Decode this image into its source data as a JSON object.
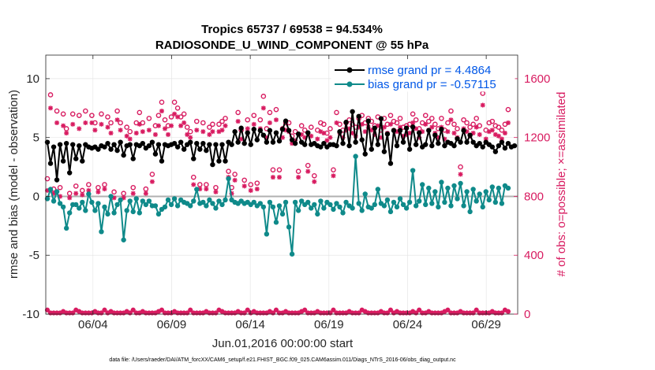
{
  "chart_data": {
    "type": "line",
    "title_line1": "Tropics 65737 / 69538 = 94.534%",
    "title_line2": "RADIOSONDE_U_WIND_COMPONENT @ 55 hPa",
    "xlabel": "Jun.01,2016 00:00:00 start",
    "ylabel_left": "rmse and bias (model - observation)",
    "ylabel_right": "# of obs: o=possible; ×=assimilated",
    "footnote": "data file: /Users/raeder/DAI/ATM_forcXX/CAM6_setup/f.e21.FHIST_BGC.f09_025.CAM6assim.011/Diags_NTrS_2016-06/obs_diag_output.nc",
    "xlim": [
      1,
      31
    ],
    "ylim_left": [
      -10,
      12
    ],
    "ylim_right": [
      0,
      1760
    ],
    "x_ticks": [
      {
        "value": 4,
        "label": "06/04"
      },
      {
        "value": 9,
        "label": "06/09"
      },
      {
        "value": 14,
        "label": "06/14"
      },
      {
        "value": 19,
        "label": "06/19"
      },
      {
        "value": 24,
        "label": "06/24"
      },
      {
        "value": 29,
        "label": "06/29"
      }
    ],
    "y_ticks_left": [
      "10",
      "5",
      "0",
      "-5",
      "-10"
    ],
    "y_ticks_left_values": [
      10,
      5,
      0,
      -5,
      -10
    ],
    "y_ticks_right": [
      "1600",
      "1200",
      "800",
      "400",
      "0"
    ],
    "y_ticks_right_values": [
      1600,
      1200,
      800,
      400,
      0
    ],
    "colors": {
      "rmse": "#000000",
      "bias": "#0f8a8a",
      "obs": "#d81b60",
      "legend_text": "#0057e7",
      "zero_line": "#b0b0b0"
    },
    "series": [
      {
        "name": "rmse grand pr = 4.4864",
        "axis": "left",
        "values": [
          4.6,
          2.8,
          4.2,
          1.4,
          4.4,
          3.0,
          4.5,
          2.0,
          4.4,
          3.2,
          4.3,
          3.0,
          4.4,
          4.2,
          4.1,
          4.2,
          4.0,
          4.3,
          4.2,
          4.5,
          4.0,
          4.4,
          3.9,
          4.6,
          3.5,
          4.3,
          4.4,
          3.2,
          4.4,
          4.3,
          4.5,
          4.1,
          4.3,
          4.6,
          3.6,
          4.4,
          3.0,
          4.4,
          4.3,
          4.4,
          4.5,
          4.2,
          4.6,
          4.0,
          4.4,
          4.6,
          3.2,
          4.5,
          4.0,
          4.5,
          3.9,
          4.4,
          2.7,
          4.4,
          3.0,
          4.4,
          3.0,
          4.6,
          4.4,
          5.5,
          4.6,
          5.8,
          4.5,
          5.4,
          4.4,
          5.7,
          4.8,
          5.6,
          5.2,
          4.6,
          5.6,
          4.6,
          5.4,
          4.7,
          5.7,
          6.4,
          5.6,
          4.8,
          4.5,
          5.3,
          4.6,
          4.4,
          5.4,
          4.4,
          4.5,
          4.3,
          4.2,
          4.5,
          4.2,
          4.4,
          4.4,
          4.3,
          5.5,
          4.5,
          6.3,
          4.3,
          7.2,
          4.6,
          6.8,
          4.8,
          3.6,
          6.4,
          4.0,
          5.8,
          4.4,
          6.6,
          3.8,
          5.3,
          2.8,
          5.6,
          4.3,
          5.6,
          4.6,
          5.8,
          4.0,
          5.9,
          4.4,
          5.4,
          4.2,
          4.4,
          5.6,
          4.3,
          5.2,
          4.5,
          5.7,
          4.3,
          4.6,
          4.5,
          4.3,
          4.9,
          4.6,
          5.6,
          4.6,
          5.2,
          4.6,
          4.3,
          4.5,
          4.2,
          4.6,
          4.4,
          4.2,
          3.8,
          4.3,
          4.6,
          4.1,
          4.5,
          4.2,
          4.3
        ]
      },
      {
        "name": "bias grand pr = -0.57115",
        "axis": "left",
        "values": [
          -0.2,
          0.6,
          -0.4,
          0.4,
          -0.6,
          -0.9,
          -2.7,
          -1.4,
          -0.7,
          -0.7,
          -1.0,
          -0.5,
          -1.2,
          0.2,
          -0.5,
          -1.2,
          -0.6,
          -3.0,
          -0.9,
          -1.5,
          0.0,
          -1.4,
          -0.7,
          -0.3,
          -3.7,
          -1.2,
          -0.4,
          -1.3,
          -0.2,
          -1.4,
          -0.4,
          -0.7,
          -0.4,
          -0.8,
          -0.8,
          -1.5,
          -1.1,
          -0.9,
          -0.3,
          -0.7,
          -0.2,
          -0.8,
          -0.3,
          -0.5,
          -0.6,
          -0.8,
          -0.4,
          0.6,
          -0.6,
          -0.5,
          -0.8,
          -0.3,
          -0.6,
          -1.0,
          -0.4,
          -0.7,
          -0.3,
          1.5,
          -0.3,
          -0.5,
          -0.6,
          -0.4,
          -0.6,
          -0.5,
          -0.7,
          -0.5,
          -0.8,
          -0.6,
          -0.9,
          -3.2,
          -0.5,
          -0.9,
          -2.2,
          -0.8,
          -1.5,
          -0.5,
          -2.6,
          -4.9,
          -0.5,
          -1.2,
          -0.4,
          -0.7,
          -0.5,
          -1.0,
          -0.7,
          -1.5,
          -0.4,
          -1.0,
          -0.5,
          -0.7,
          -1.1,
          -0.6,
          -0.9,
          -1.4,
          -0.5,
          -0.8,
          -1.0,
          3.4,
          -0.6,
          -1.2,
          0.2,
          -0.9,
          -1.0,
          -0.7,
          0.6,
          -0.6,
          -0.8,
          -0.3,
          -1.3,
          -0.5,
          -0.9,
          -0.2,
          -0.7,
          -1.0,
          -0.5,
          2.2,
          -0.8,
          -0.4,
          1.0,
          -0.7,
          0.7,
          -0.6,
          0.4,
          -0.9,
          1.2,
          -0.5,
          0.7,
          -0.8,
          0.9,
          -0.2,
          1.1,
          -0.8,
          0.4,
          -1.3,
          0.6,
          -0.4,
          0.2,
          -0.9,
          0.4,
          -0.3,
          0.8,
          -0.5,
          0.7,
          -0.6,
          0.9,
          0.7
        ]
      },
      {
        "name": "possible",
        "axis": "right",
        "values": [
          920,
          1490,
          850,
          1380,
          860,
          1360,
          1260,
          820,
          1360,
          870,
          1350,
          840,
          1380,
          880,
          1350,
          1300,
          860,
          1360,
          880,
          1340,
          1300,
          830,
          1380,
          1300,
          820,
          1270,
          1240,
          860,
          1300,
          1370,
          1300,
          850,
          1330,
          950,
          1280,
          1350,
          1440,
          1320,
          1280,
          1340,
          1440,
          1400,
          1340,
          1360,
          1270,
          1240,
          930,
          1310,
          880,
          1300,
          880,
          1270,
          1290,
          860,
          1290,
          1310,
          1330,
          970,
          860,
          950,
          1370,
          1250,
          910,
          1320,
          880,
          1350,
          890,
          1320,
          1480,
          1260,
          1370,
          980,
          1390,
          980,
          1260,
          1300,
          1300,
          1210,
          1240,
          970,
          1280,
          1250,
          1010,
          1270,
          940,
          1250,
          1300,
          1290,
          1230,
          1260,
          980,
          1370,
          1290,
          1250,
          1300,
          1320,
          1290,
          1270,
          1330,
          1350,
          1300,
          1330,
          1310,
          1280,
          1340,
          1250,
          1330,
          1290,
          1350,
          1310,
          1300,
          1330,
          1270,
          1280,
          1290,
          1360,
          1320,
          1260,
          1300,
          1350,
          1310,
          1330,
          1290,
          1260,
          1330,
          1250,
          1300,
          1380,
          1290,
          1260,
          1000,
          1320,
          1300,
          1270,
          1290,
          1330,
          1280,
          1500,
          1250,
          1300,
          1310,
          1280,
          1270,
          1250,
          1290,
          1390
        ]
      },
      {
        "name": "assimilated",
        "axis": "right",
        "values": [
          840,
          1400,
          820,
          1300,
          800,
          1280,
          1230,
          790,
          1290,
          820,
          1260,
          810,
          1300,
          840,
          1300,
          1250,
          830,
          1290,
          850,
          1270,
          1230,
          790,
          1320,
          1250,
          790,
          1210,
          1190,
          820,
          1230,
          1290,
          1240,
          820,
          1250,
          900,
          1220,
          1280,
          1380,
          1260,
          1220,
          1280,
          1360,
          1340,
          1280,
          1300,
          1220,
          1200,
          880,
          1250,
          850,
          1240,
          850,
          1220,
          1240,
          830,
          1240,
          1250,
          1280,
          930,
          820,
          910,
          1310,
          1190,
          870,
          1260,
          840,
          1290,
          850,
          1260,
          1400,
          1200,
          1300,
          930,
          1320,
          930,
          1200,
          1250,
          1240,
          1160,
          1180,
          930,
          1220,
          1200,
          970,
          1210,
          900,
          1190,
          1240,
          1230,
          1180,
          1200,
          940,
          1300,
          1230,
          1200,
          1250,
          1260,
          1230,
          1210,
          1270,
          1290,
          1240,
          1270,
          1250,
          1220,
          1280,
          1200,
          1270,
          1230,
          1290,
          1250,
          1240,
          1270,
          1210,
          1220,
          1230,
          1300,
          1260,
          1200,
          1240,
          1290,
          1250,
          1270,
          1230,
          1200,
          1270,
          1190,
          1240,
          1320,
          1230,
          1200,
          950,
          1260,
          1240,
          1210,
          1230,
          1270,
          1220,
          1420,
          1190,
          1240,
          1250,
          1220,
          1210,
          1190,
          1230,
          1300
        ]
      }
    ],
    "legend": [
      "rmse grand pr = 4.4864",
      "bias grand pr = -0.57115"
    ],
    "legend_position": "top-right"
  }
}
